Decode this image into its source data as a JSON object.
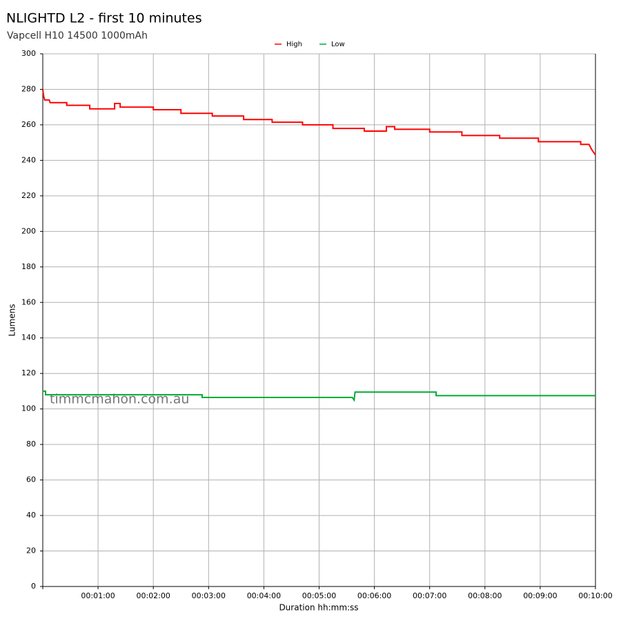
{
  "chart_data": {
    "type": "line",
    "title": "NLIGHTD L2 - first 10 minutes",
    "subtitle": "Vapcell H10 14500 1000mAh",
    "x_label": "Duration hh:mm:ss",
    "y_label": "Lumens",
    "annotation": "timmcmahon.com.au",
    "grid": true,
    "legend": "top",
    "xlim": [
      0,
      600
    ],
    "ylim": [
      0,
      300
    ],
    "xticks": [
      {
        "value": 60,
        "label": "00:01:00"
      },
      {
        "value": 120,
        "label": "00:02:00"
      },
      {
        "value": 180,
        "label": "00:03:00"
      },
      {
        "value": 240,
        "label": "00:04:00"
      },
      {
        "value": 300,
        "label": "00:05:00"
      },
      {
        "value": 360,
        "label": "00:06:00"
      },
      {
        "value": 420,
        "label": "00:07:00"
      },
      {
        "value": 480,
        "label": "00:08:00"
      },
      {
        "value": 540,
        "label": "00:09:00"
      },
      {
        "value": 600,
        "label": "00:10:00"
      }
    ],
    "yticks": [
      0,
      20,
      40,
      60,
      80,
      100,
      120,
      140,
      160,
      180,
      200,
      220,
      240,
      260,
      280,
      300
    ],
    "series": [
      {
        "name": "High",
        "color": "#ff0000",
        "x": [
          0,
          1,
          2,
          7,
          8,
          26,
          26,
          51,
          51,
          78,
          78,
          84,
          84,
          120,
          120,
          150,
          150,
          184,
          184,
          218,
          218,
          249,
          249,
          282,
          282,
          315,
          315,
          349,
          349,
          373,
          373,
          382,
          382,
          420,
          420,
          455,
          455,
          496,
          496,
          538,
          538,
          584,
          584,
          593,
          596,
          600
        ],
        "values": [
          280,
          276,
          274,
          274,
          272.5,
          272.5,
          271,
          271,
          269,
          269,
          272,
          272,
          270,
          270,
          268.5,
          268.5,
          266.5,
          266.5,
          265,
          265,
          263,
          263,
          261.5,
          261.5,
          260,
          260,
          258,
          258,
          256.5,
          256.5,
          259,
          259,
          257.5,
          257.5,
          256,
          256,
          254,
          254,
          252.5,
          252.5,
          250.5,
          250.5,
          249,
          249,
          246,
          243
        ]
      },
      {
        "name": "Low",
        "color": "#00aa33",
        "x": [
          0,
          3,
          3,
          173,
          173,
          336,
          338,
          339,
          427,
          427,
          600
        ],
        "values": [
          110,
          110,
          108,
          108,
          106.5,
          106.5,
          105,
          109.5,
          109.5,
          107.5,
          107.5
        ]
      }
    ]
  }
}
